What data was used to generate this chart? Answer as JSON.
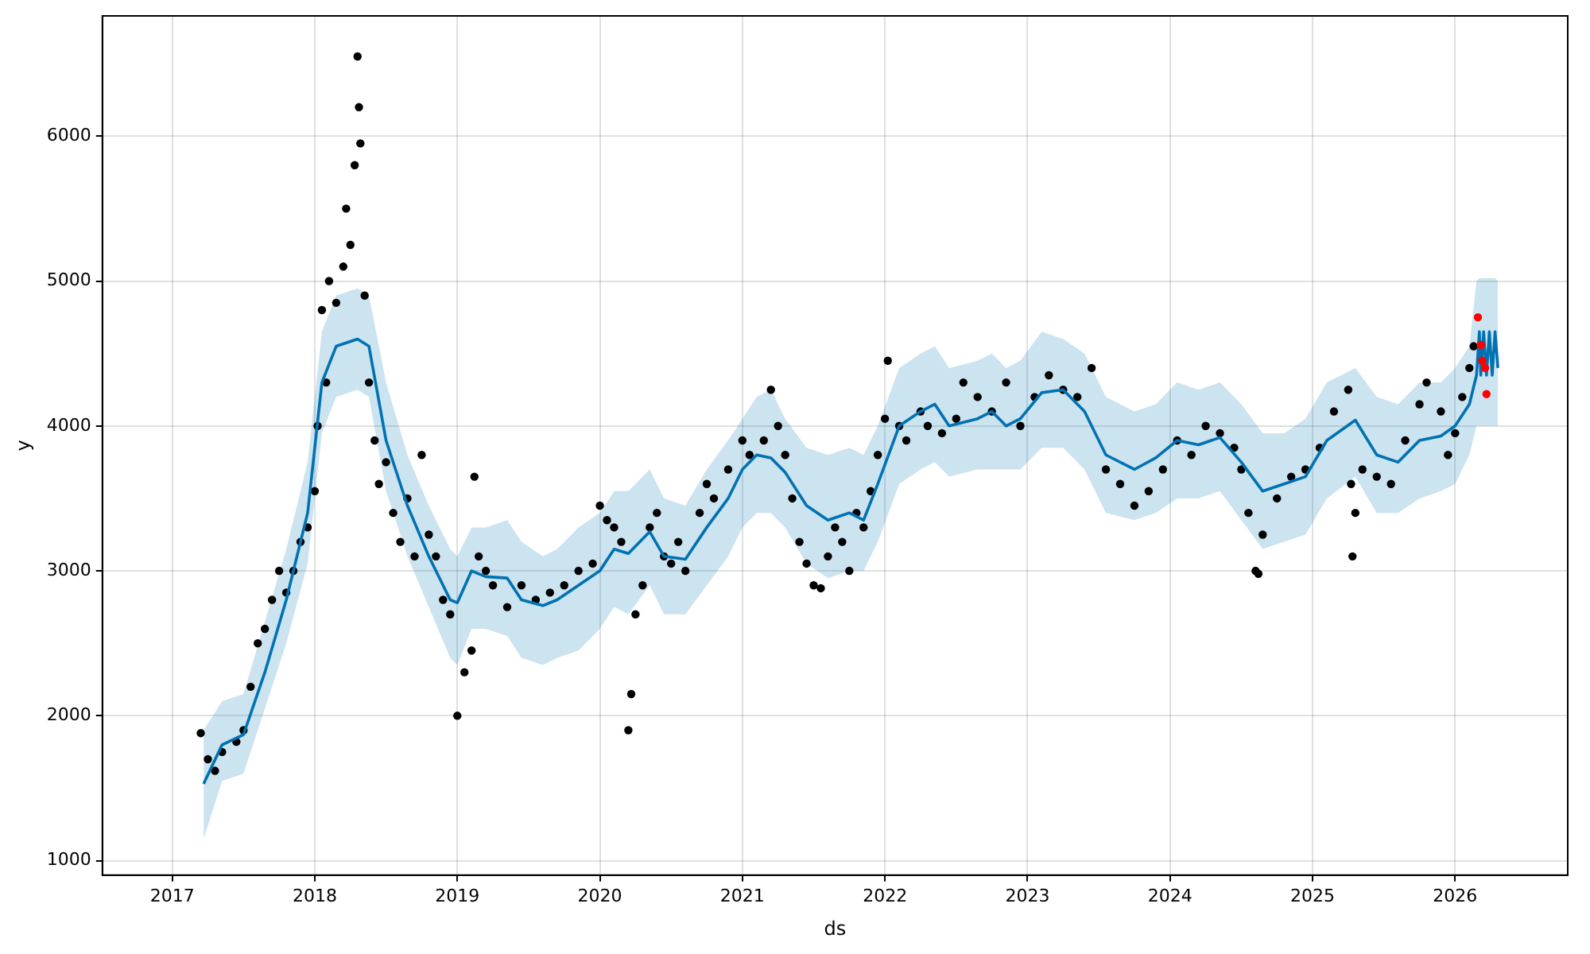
{
  "chart_data": {
    "type": "line",
    "xlabel": "ds",
    "ylabel": "y",
    "xlim": [
      2016.51,
      2026.79
    ],
    "ylim": [
      900,
      6830
    ],
    "xticks": [
      2017,
      2018,
      2019,
      2020,
      2021,
      2022,
      2023,
      2024,
      2025,
      2026
    ],
    "yticks": [
      1000,
      2000,
      3000,
      4000,
      5000,
      6000
    ],
    "grid": true,
    "legend": false,
    "series": [
      {
        "type": "scatter",
        "marker": "circle",
        "color": "#000000",
        "x": [
          2017.2,
          2017.25,
          2017.3,
          2017.35,
          2017.45,
          2017.5,
          2017.55,
          2017.6,
          2017.65,
          2017.7,
          2017.75,
          2017.8,
          2017.85,
          2017.9,
          2017.95,
          2018.0,
          2018.02,
          2018.05,
          2018.08,
          2018.1,
          2018.15,
          2018.2,
          2018.22,
          2018.25,
          2018.28,
          2018.3,
          2018.31,
          2018.32,
          2018.35,
          2018.38,
          2018.42,
          2018.45,
          2018.5,
          2018.55,
          2018.6,
          2018.65,
          2018.7,
          2018.75,
          2018.8,
          2018.85,
          2018.9,
          2018.95,
          2019.0,
          2019.05,
          2019.1,
          2019.12,
          2019.15,
          2019.2,
          2019.25,
          2019.35,
          2019.45,
          2019.55,
          2019.65,
          2019.75,
          2019.85,
          2019.95,
          2020.0,
          2020.05,
          2020.1,
          2020.15,
          2020.2,
          2020.22,
          2020.25,
          2020.3,
          2020.35,
          2020.4,
          2020.45,
          2020.5,
          2020.55,
          2020.6,
          2020.7,
          2020.75,
          2020.8,
          2020.9,
          2021.0,
          2021.05,
          2021.15,
          2021.2,
          2021.25,
          2021.3,
          2021.35,
          2021.4,
          2021.45,
          2021.5,
          2021.55,
          2021.6,
          2021.65,
          2021.7,
          2021.75,
          2021.8,
          2021.85,
          2021.9,
          2021.95,
          2022.0,
          2022.02,
          2022.1,
          2022.15,
          2022.25,
          2022.3,
          2022.4,
          2022.5,
          2022.55,
          2022.65,
          2022.75,
          2022.85,
          2022.95,
          2023.05,
          2023.15,
          2023.25,
          2023.35,
          2023.45,
          2023.55,
          2023.65,
          2023.75,
          2023.85,
          2023.95,
          2024.05,
          2024.15,
          2024.25,
          2024.35,
          2024.45,
          2024.5,
          2024.55,
          2024.6,
          2024.62,
          2024.65,
          2024.75,
          2024.85,
          2024.95,
          2025.05,
          2025.15,
          2025.25,
          2025.27,
          2025.28,
          2025.3,
          2025.35,
          2025.45,
          2025.55,
          2025.65,
          2025.75,
          2025.8,
          2025.9,
          2025.95,
          2026.0,
          2026.05,
          2026.1,
          2026.13
        ],
        "values": [
          1880,
          1700,
          1620,
          1750,
          1820,
          1900,
          2200,
          2500,
          2600,
          2800,
          3000,
          2850,
          3000,
          3200,
          3300,
          3550,
          4000,
          4800,
          4300,
          5000,
          4850,
          5100,
          5500,
          5250,
          5800,
          6550,
          6200,
          5950,
          4900,
          4300,
          3900,
          3600,
          3750,
          3400,
          3200,
          3500,
          3100,
          3800,
          3250,
          3100,
          2800,
          2700,
          2000,
          2300,
          2450,
          3650,
          3100,
          3000,
          2900,
          2750,
          2900,
          2800,
          2850,
          2900,
          3000,
          3050,
          3450,
          3350,
          3300,
          3200,
          1900,
          2150,
          2700,
          2900,
          3300,
          3400,
          3100,
          3050,
          3200,
          3000,
          3400,
          3600,
          3500,
          3700,
          3900,
          3800,
          3900,
          4250,
          4000,
          3800,
          3500,
          3200,
          3050,
          2900,
          2880,
          3100,
          3300,
          3200,
          3000,
          3400,
          3300,
          3550,
          3800,
          4050,
          4450,
          4000,
          3900,
          4100,
          4000,
          3950,
          4050,
          4300,
          4200,
          4100,
          4300,
          4000,
          4200,
          4350,
          4250,
          4200,
          4400,
          3700,
          3600,
          3450,
          3550,
          3700,
          3900,
          3800,
          4000,
          3950,
          3850,
          3700,
          3400,
          3000,
          2980,
          3250,
          3500,
          3650,
          3700,
          3850,
          4100,
          4250,
          3600,
          3100,
          3400,
          3700,
          3650,
          3600,
          3900,
          4150,
          4300,
          4100,
          3800,
          3950,
          4200,
          4400,
          4550
        ]
      },
      {
        "color": "#0072b2",
        "x": [
          2017.22,
          2017.35,
          2017.5,
          2017.65,
          2017.8,
          2017.95,
          2018.05,
          2018.15,
          2018.3,
          2018.38,
          2018.5,
          2018.65,
          2018.8,
          2018.95,
          2019.0,
          2019.1,
          2019.2,
          2019.35,
          2019.45,
          2019.6,
          2019.7,
          2019.85,
          2020.0,
          2020.1,
          2020.2,
          2020.35,
          2020.45,
          2020.6,
          2020.75,
          2020.9,
          2021.0,
          2021.1,
          2021.2,
          2021.3,
          2021.45,
          2021.6,
          2021.75,
          2021.85,
          2021.95,
          2022.1,
          2022.25,
          2022.35,
          2022.45,
          2022.65,
          2022.75,
          2022.85,
          2022.95,
          2023.1,
          2023.25,
          2023.4,
          2023.55,
          2023.75,
          2023.9,
          2024.05,
          2024.2,
          2024.35,
          2024.5,
          2024.65,
          2024.8,
          2024.95,
          2025.1,
          2025.3,
          2025.45,
          2025.6,
          2025.75,
          2025.9,
          2026.0,
          2026.1,
          2026.15,
          2026.17,
          2026.18,
          2026.2,
          2026.22,
          2026.24,
          2026.26,
          2026.28,
          2026.3
        ],
        "values": [
          1530,
          1800,
          1870,
          2300,
          2800,
          3400,
          4300,
          4550,
          4600,
          4550,
          3900,
          3450,
          3100,
          2800,
          2780,
          3000,
          2960,
          2950,
          2800,
          2760,
          2800,
          2900,
          3000,
          3150,
          3120,
          3270,
          3100,
          3080,
          3300,
          3500,
          3700,
          3800,
          3780,
          3680,
          3450,
          3350,
          3400,
          3350,
          3600,
          4000,
          4100,
          4150,
          4000,
          4050,
          4100,
          4000,
          4050,
          4230,
          4250,
          4100,
          3800,
          3700,
          3780,
          3900,
          3870,
          3920,
          3750,
          3550,
          3600,
          3650,
          3900,
          4040,
          3800,
          3750,
          3900,
          3930,
          4000,
          4150,
          4350,
          4650,
          4350,
          4650,
          4350,
          4650,
          4350,
          4650,
          4400
        ],
        "lower": [
          1150,
          1550,
          1600,
          2050,
          2500,
          3050,
          3950,
          4200,
          4250,
          4200,
          3550,
          3100,
          2750,
          2400,
          2350,
          2600,
          2600,
          2550,
          2400,
          2350,
          2400,
          2450,
          2600,
          2750,
          2700,
          2900,
          2700,
          2700,
          2900,
          3100,
          3300,
          3400,
          3400,
          3300,
          3050,
          2950,
          3000,
          3000,
          3200,
          3600,
          3700,
          3750,
          3650,
          3700,
          3700,
          3700,
          3700,
          3850,
          3850,
          3700,
          3400,
          3350,
          3400,
          3500,
          3500,
          3550,
          3350,
          3150,
          3200,
          3250,
          3500,
          3650,
          3400,
          3400,
          3500,
          3550,
          3600,
          3800,
          4000,
          4000,
          4000,
          4000,
          4000,
          4000,
          4000,
          4000,
          4000
        ],
        "upper": [
          1900,
          2100,
          2150,
          2650,
          3150,
          3750,
          4650,
          4900,
          4950,
          4900,
          4300,
          3800,
          3450,
          3150,
          3100,
          3300,
          3300,
          3350,
          3200,
          3100,
          3150,
          3300,
          3400,
          3550,
          3550,
          3700,
          3500,
          3450,
          3700,
          3900,
          4050,
          4200,
          4250,
          4050,
          3850,
          3800,
          3850,
          3800,
          4000,
          4400,
          4500,
          4550,
          4400,
          4450,
          4500,
          4400,
          4450,
          4650,
          4600,
          4500,
          4200,
          4100,
          4150,
          4300,
          4250,
          4300,
          4150,
          3950,
          3950,
          4050,
          4300,
          4400,
          4200,
          4150,
          4300,
          4300,
          4400,
          4550,
          5000,
          5020,
          5020,
          5020,
          5020,
          5020,
          5020,
          5020,
          5000
        ]
      },
      {
        "type": "scatter",
        "marker": "circle",
        "color": "#ff0000",
        "x": [
          2026.16,
          2026.18,
          2026.19,
          2026.21,
          2026.22
        ],
        "values": [
          4750,
          4560,
          4450,
          4400,
          4220
        ]
      }
    ]
  }
}
